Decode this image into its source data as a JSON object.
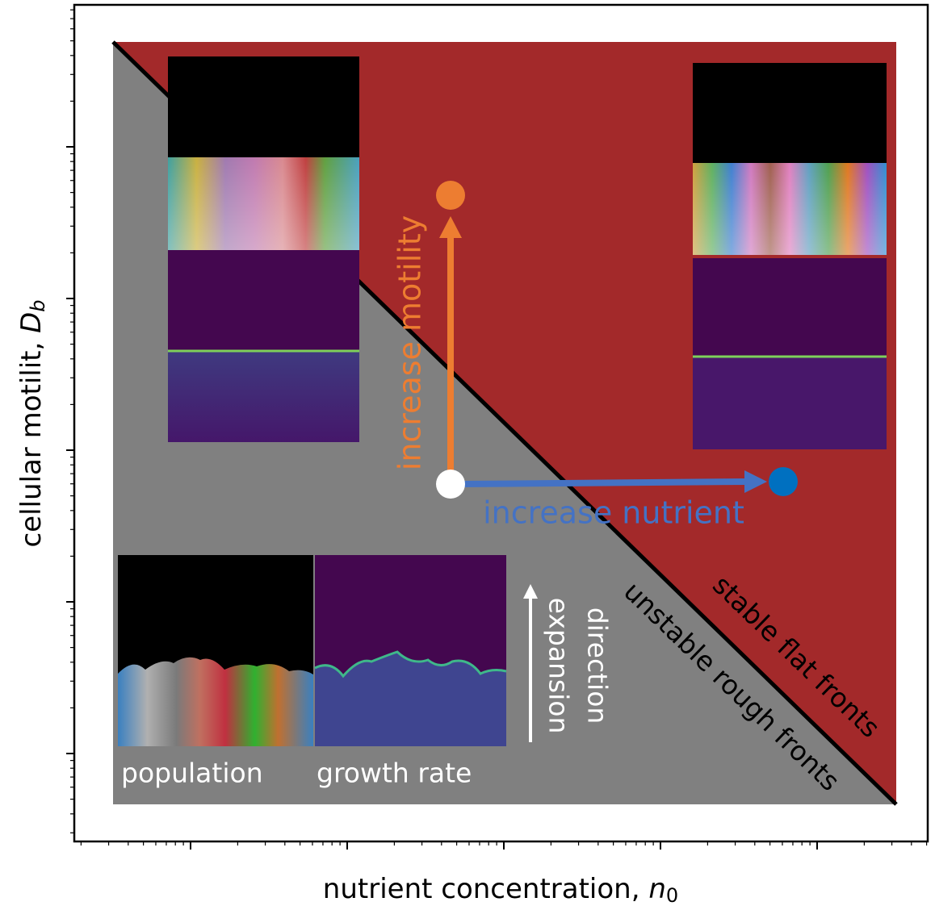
{
  "diagram": {
    "x_label": {
      "text": "nutrient concentration, ",
      "symbol": "n",
      "subscript": "0"
    },
    "y_label": {
      "text": "cellular motilit, ",
      "symbol": "D",
      "subscript": "b"
    },
    "regions": {
      "stable": "stable flat fronts",
      "unstable": "unstable rough fronts"
    },
    "arrows": {
      "motility": "increase motility",
      "nutrient": "increase nutrient"
    },
    "expansion": [
      "expansion",
      "direction"
    ],
    "insets": {
      "population": "population",
      "growth_rate": "growth rate"
    }
  }
}
